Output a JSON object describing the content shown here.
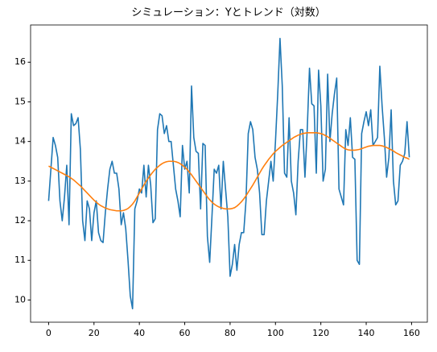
{
  "chart_data": {
    "type": "line",
    "title": "シミュレーション：Yとトレンド（対数）",
    "x": [
      0,
      1,
      2,
      3,
      4,
      5,
      6,
      7,
      8,
      9,
      10,
      11,
      12,
      13,
      14,
      15,
      16,
      17,
      18,
      19,
      20,
      21,
      22,
      23,
      24,
      25,
      26,
      27,
      28,
      29,
      30,
      31,
      32,
      33,
      34,
      35,
      36,
      37,
      38,
      39,
      40,
      41,
      42,
      43,
      44,
      45,
      46,
      47,
      48,
      49,
      50,
      51,
      52,
      53,
      54,
      55,
      56,
      57,
      58,
      59,
      60,
      61,
      62,
      63,
      64,
      65,
      66,
      67,
      68,
      69,
      70,
      71,
      72,
      73,
      74,
      75,
      76,
      77,
      78,
      79,
      80,
      81,
      82,
      83,
      84,
      85,
      86,
      87,
      88,
      89,
      90,
      91,
      92,
      93,
      94,
      95,
      96,
      97,
      98,
      99,
      100,
      101,
      102,
      103,
      104,
      105,
      106,
      107,
      108,
      109,
      110,
      111,
      112,
      113,
      114,
      115,
      116,
      117,
      118,
      119,
      120,
      121,
      122,
      123,
      124,
      125,
      126,
      127,
      128,
      129,
      130,
      131,
      132,
      133,
      134,
      135,
      136,
      137,
      138,
      139,
      140,
      141,
      142,
      143,
      144,
      145,
      146,
      147,
      148,
      149,
      150,
      151,
      152,
      153,
      154,
      155,
      156,
      157,
      158,
      159
    ],
    "series": [
      {
        "color": "#1f77b4",
        "values": [
          12.5,
          13.3,
          14.1,
          13.9,
          13.6,
          12.5,
          12.0,
          12.6,
          13.4,
          11.9,
          14.7,
          14.4,
          14.45,
          14.6,
          13.8,
          12.0,
          11.5,
          12.5,
          12.3,
          11.5,
          12.2,
          12.5,
          11.7,
          11.5,
          11.45,
          12.2,
          12.8,
          13.3,
          13.5,
          13.2,
          13.2,
          12.8,
          11.9,
          12.2,
          11.8,
          11.0,
          10.1,
          9.78,
          12.3,
          12.5,
          12.8,
          12.7,
          13.4,
          12.6,
          13.4,
          12.9,
          11.95,
          12.05,
          14.3,
          14.7,
          14.65,
          14.2,
          14.4,
          14.0,
          14.0,
          13.4,
          12.8,
          12.5,
          12.1,
          13.9,
          13.3,
          13.5,
          12.7,
          15.4,
          14.1,
          13.75,
          13.7,
          12.3,
          13.95,
          13.9,
          11.6,
          10.95,
          12.1,
          13.3,
          13.2,
          13.4,
          12.3,
          13.5,
          12.8,
          12.1,
          10.6,
          10.9,
          11.4,
          10.75,
          11.4,
          11.7,
          11.7,
          12.5,
          14.2,
          14.5,
          14.3,
          13.6,
          13.3,
          12.7,
          11.65,
          11.65,
          12.5,
          13.0,
          13.5,
          13.0,
          14.0,
          15.2,
          16.6,
          15.4,
          13.2,
          13.1,
          14.6,
          13.0,
          12.7,
          12.15,
          13.5,
          14.3,
          14.3,
          13.1,
          14.3,
          15.85,
          14.95,
          14.9,
          13.2,
          15.8,
          14.9,
          13.0,
          13.3,
          15.7,
          14.0,
          14.7,
          15.2,
          15.6,
          12.8,
          12.6,
          12.4,
          14.3,
          13.9,
          14.6,
          13.6,
          13.55,
          11.0,
          10.9,
          14.2,
          14.5,
          14.75,
          14.4,
          14.8,
          13.9,
          14.0,
          14.1,
          15.9,
          14.9,
          14.1,
          13.1,
          13.6,
          14.8,
          13.0,
          12.4,
          12.5,
          13.4,
          13.5,
          13.7,
          14.5,
          13.6
        ]
      },
      {
        "color": "#ff7f0e",
        "values": [
          13.38,
          13.35,
          13.32,
          13.29,
          13.26,
          13.23,
          13.2,
          13.17,
          13.14,
          13.11,
          13.07,
          13.03,
          12.98,
          12.93,
          12.88,
          12.82,
          12.76,
          12.7,
          12.64,
          12.58,
          12.52,
          12.47,
          12.42,
          12.38,
          12.35,
          12.32,
          12.3,
          12.28,
          12.27,
          12.26,
          12.25,
          12.25,
          12.25,
          12.26,
          12.28,
          12.31,
          12.36,
          12.42,
          12.5,
          12.6,
          12.7,
          12.8,
          12.9,
          13.0,
          13.08,
          13.16,
          13.23,
          13.3,
          13.35,
          13.4,
          13.44,
          13.47,
          13.49,
          13.5,
          13.5,
          13.5,
          13.49,
          13.47,
          13.44,
          13.4,
          13.35,
          13.3,
          13.23,
          13.16,
          13.08,
          13.0,
          12.92,
          12.84,
          12.76,
          12.68,
          12.6,
          12.53,
          12.47,
          12.42,
          12.38,
          12.35,
          12.33,
          12.31,
          12.3,
          12.3,
          12.3,
          12.31,
          12.33,
          12.37,
          12.42,
          12.48,
          12.55,
          12.63,
          12.72,
          12.81,
          12.9,
          13.0,
          13.1,
          13.2,
          13.3,
          13.39,
          13.47,
          13.55,
          13.62,
          13.69,
          13.75,
          13.8,
          13.85,
          13.9,
          13.94,
          13.98,
          14.02,
          14.06,
          14.1,
          14.13,
          14.16,
          14.18,
          14.2,
          14.21,
          14.22,
          14.22,
          14.22,
          14.22,
          14.22,
          14.21,
          14.2,
          14.18,
          14.15,
          14.12,
          14.08,
          14.04,
          14.0,
          13.96,
          13.92,
          13.88,
          13.84,
          13.81,
          13.79,
          13.78,
          13.78,
          13.78,
          13.79,
          13.8,
          13.82,
          13.84,
          13.86,
          13.88,
          13.89,
          13.9,
          13.9,
          13.9,
          13.9,
          13.89,
          13.87,
          13.85,
          13.82,
          13.79,
          13.76,
          13.72,
          13.69,
          13.66,
          13.63,
          13.6,
          13.58,
          13.55
        ]
      }
    ],
    "xlim": [
      -7.95,
      166.95
    ],
    "xticks": [
      0,
      20,
      40,
      60,
      80,
      100,
      120,
      140,
      160
    ],
    "ylim": [
      9.44,
      16.94
    ],
    "yticks": [
      10,
      11,
      12,
      13,
      14,
      15,
      16
    ]
  }
}
